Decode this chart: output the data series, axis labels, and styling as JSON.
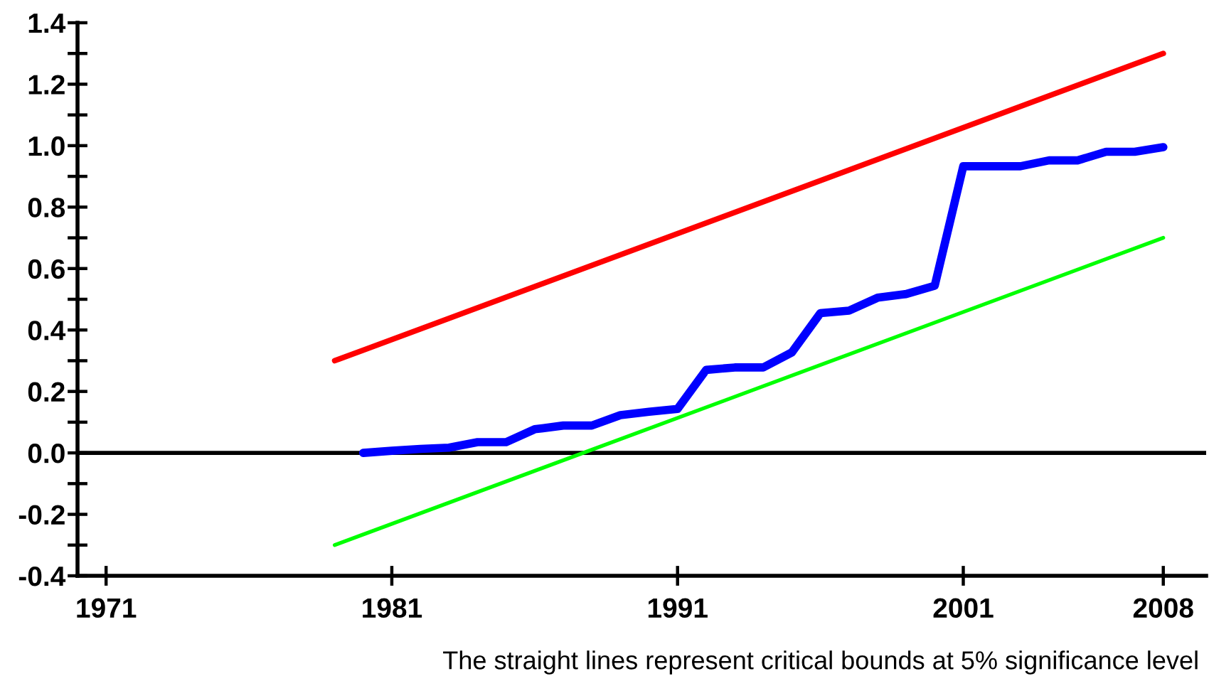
{
  "chart_data": {
    "type": "line",
    "series": [
      {
        "color": "#0000ff",
        "x": [
          1980,
          1981,
          1982,
          1983,
          1984,
          1985,
          1986,
          1987,
          1988,
          1989,
          1990,
          1991,
          1992,
          1993,
          1994,
          1995,
          1996,
          1997,
          1998,
          1999,
          2000,
          2001,
          2002,
          2003,
          2004,
          2005,
          2006,
          2007,
          2008
        ],
        "values": [
          0.0,
          0.007,
          0.013,
          0.017,
          0.035,
          0.035,
          0.077,
          0.089,
          0.089,
          0.123,
          0.134,
          0.143,
          0.27,
          0.278,
          0.278,
          0.327,
          0.455,
          0.463,
          0.505,
          0.517,
          0.544,
          0.933,
          0.933,
          0.933,
          0.952,
          0.952,
          0.98,
          0.98,
          0.995
        ]
      },
      {
        "color": "#ff0000",
        "x": [
          1979,
          2008
        ],
        "values": [
          0.3,
          1.3
        ]
      },
      {
        "color": "#00ff00",
        "x": [
          1979,
          2008
        ],
        "values": [
          -0.3,
          0.7
        ]
      }
    ],
    "xlim": [
      1970,
      2009.5
    ],
    "ylim": [
      -0.4,
      1.4
    ],
    "xticks": [
      1971,
      1981,
      1991,
      2001,
      2008
    ],
    "yticks": [
      -0.4,
      {
        "value": -0.3,
        "label": null
      },
      -0.2,
      {
        "value": -0.1,
        "label": null
      },
      {
        "value": 0.0,
        "label": "0.0"
      },
      {
        "value": 0.1,
        "label": null
      },
      0.2,
      {
        "value": 0.3,
        "label": null
      },
      0.4,
      {
        "value": 0.5,
        "label": null
      },
      0.6,
      {
        "value": 0.7,
        "label": null
      },
      0.8,
      {
        "value": 0.9,
        "label": null
      },
      {
        "value": 1.0,
        "label": "1.0"
      },
      {
        "value": 1.1,
        "label": null
      },
      1.2,
      {
        "value": 1.3,
        "label": null
      },
      1.4
    ],
    "ref_lines": [
      {
        "axis": "y",
        "value": 0,
        "color": "#000000"
      }
    ],
    "annotations": [
      "The straight lines represent critical bounds at 5% significance level"
    ]
  }
}
